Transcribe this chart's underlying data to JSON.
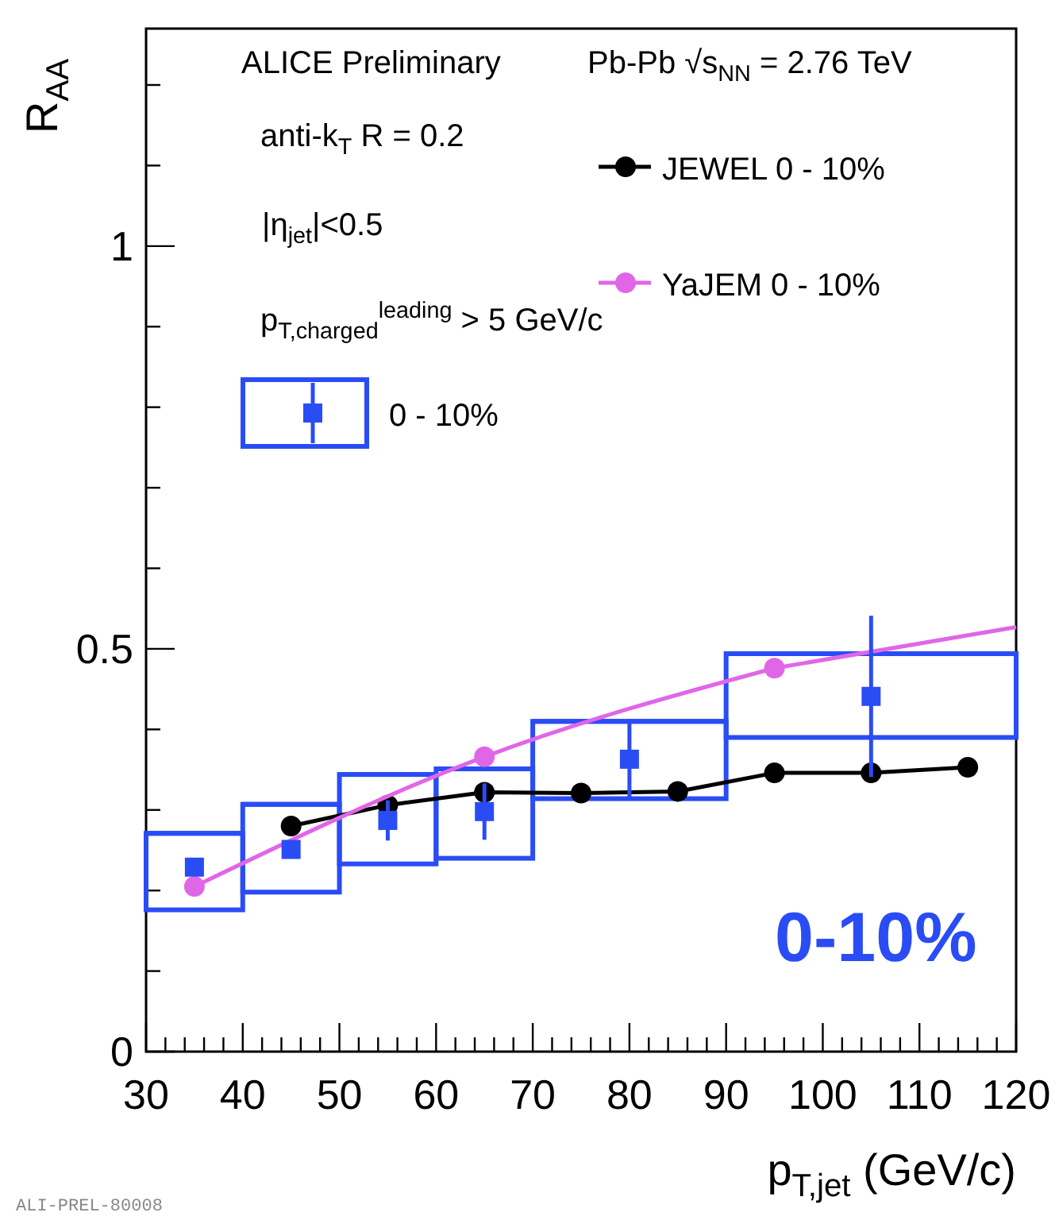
{
  "chart_data": {
    "type": "scatter",
    "xlabel": "p$_{T,jet}$ (GeV/c)",
    "ylabel": "R$_{AA}$",
    "xlim": [
      30,
      120
    ],
    "ylim": [
      0,
      1.27
    ],
    "xticks": [
      30,
      {
        "value": 32,
        "label": null
      },
      {
        "value": 34,
        "label": null
      },
      {
        "value": 36,
        "label": null
      },
      {
        "value": 38,
        "label": null
      },
      40,
      {
        "value": 42,
        "label": null
      },
      {
        "value": 44,
        "label": null
      },
      {
        "value": 46,
        "label": null
      },
      {
        "value": 48,
        "label": null
      },
      50,
      {
        "value": 52,
        "label": null
      },
      {
        "value": 54,
        "label": null
      },
      {
        "value": 56,
        "label": null
      },
      {
        "value": 58,
        "label": null
      },
      60,
      {
        "value": 62,
        "label": null
      },
      {
        "value": 64,
        "label": null
      },
      {
        "value": 66,
        "label": null
      },
      {
        "value": 68,
        "label": null
      },
      70,
      {
        "value": 72,
        "label": null
      },
      {
        "value": 74,
        "label": null
      },
      {
        "value": 76,
        "label": null
      },
      {
        "value": 78,
        "label": null
      },
      80,
      {
        "value": 82,
        "label": null
      },
      {
        "value": 84,
        "label": null
      },
      {
        "value": 86,
        "label": null
      },
      {
        "value": 88,
        "label": null
      },
      90,
      {
        "value": 92,
        "label": null
      },
      {
        "value": 94,
        "label": null
      },
      {
        "value": 96,
        "label": null
      },
      {
        "value": 98,
        "label": null
      },
      100,
      {
        "value": 102,
        "label": null
      },
      {
        "value": 104,
        "label": null
      },
      {
        "value": 106,
        "label": null
      },
      {
        "value": 108,
        "label": null
      },
      110,
      {
        "value": 112,
        "label": null
      },
      {
        "value": 114,
        "label": null
      },
      {
        "value": 116,
        "label": null
      },
      {
        "value": 118,
        "label": null
      },
      120
    ],
    "yticks": [
      0,
      {
        "value": 0.1,
        "label": null
      },
      {
        "value": 0.2,
        "label": null
      },
      {
        "value": 0.3,
        "label": null
      },
      {
        "value": 0.4,
        "label": null
      },
      0.5,
      {
        "value": 0.6,
        "label": null
      },
      {
        "value": 0.7,
        "label": null
      },
      {
        "value": 0.8,
        "label": null
      },
      {
        "value": 0.9,
        "label": null
      },
      1,
      {
        "value": 1.1,
        "label": null
      },
      {
        "value": 1.2,
        "label": null
      }
    ],
    "grid": false,
    "legend": "top",
    "marker": "circle",
    "series": [
      {
        "type": "bar",
        "color": "#2a4cf5",
        "x": [
          35,
          45,
          55,
          65,
          80,
          105
        ],
        "base": [
          0.176,
          0.198,
          0.233,
          0.24,
          0.314,
          0.39
        ],
        "values": [
          0.095,
          0.109,
          0.111,
          0.111,
          0.096,
          0.104
        ],
        "xerrors": [
          5,
          5,
          5,
          5,
          10,
          15
        ]
      },
      {
        "type": "line",
        "name": "JEWEL  0 - 10%",
        "color": "#000000",
        "x": [
          45,
          55,
          65,
          75,
          85,
          95,
          105,
          115
        ],
        "values": [
          0.28,
          0.306,
          0.322,
          0.321,
          0.323,
          0.346,
          0.346,
          0.353
        ]
      },
      {
        "type": "line",
        "name": "YaJEM   0 - 10%",
        "color": "#e066e8",
        "x": [
          35,
          65,
          95
        ],
        "values": [
          0.205,
          0.366,
          0.476
        ]
      },
      {
        "type": "line",
        "color": "#e066e8",
        "marker": "none",
        "x": [
          95,
          120
        ],
        "values": [
          0.476,
          0.527
        ]
      },
      {
        "name": "0 - 10%",
        "color": "#2a4cf5",
        "marker": "square",
        "x": [
          35,
          45,
          55,
          65,
          80,
          105
        ],
        "values": [
          0.229,
          0.251,
          0.287,
          0.298,
          0.363,
          0.441
        ],
        "errors": [
          0.01,
          0.01,
          0.025,
          0.035,
          0.05,
          0.1
        ]
      }
    ],
    "annotations": [
      "ALICE Preliminary",
      "Pb-Pb √s$_{NN}$ = 2.76 TeV",
      "anti-k$_{T}$ R = 0.2",
      "|η$_{jet}$|<0.5",
      "p$_{T,charged}$$^{leading}$ > 5 GeV/c",
      "0-10%",
      "ALI-PREL-80008"
    ]
  }
}
